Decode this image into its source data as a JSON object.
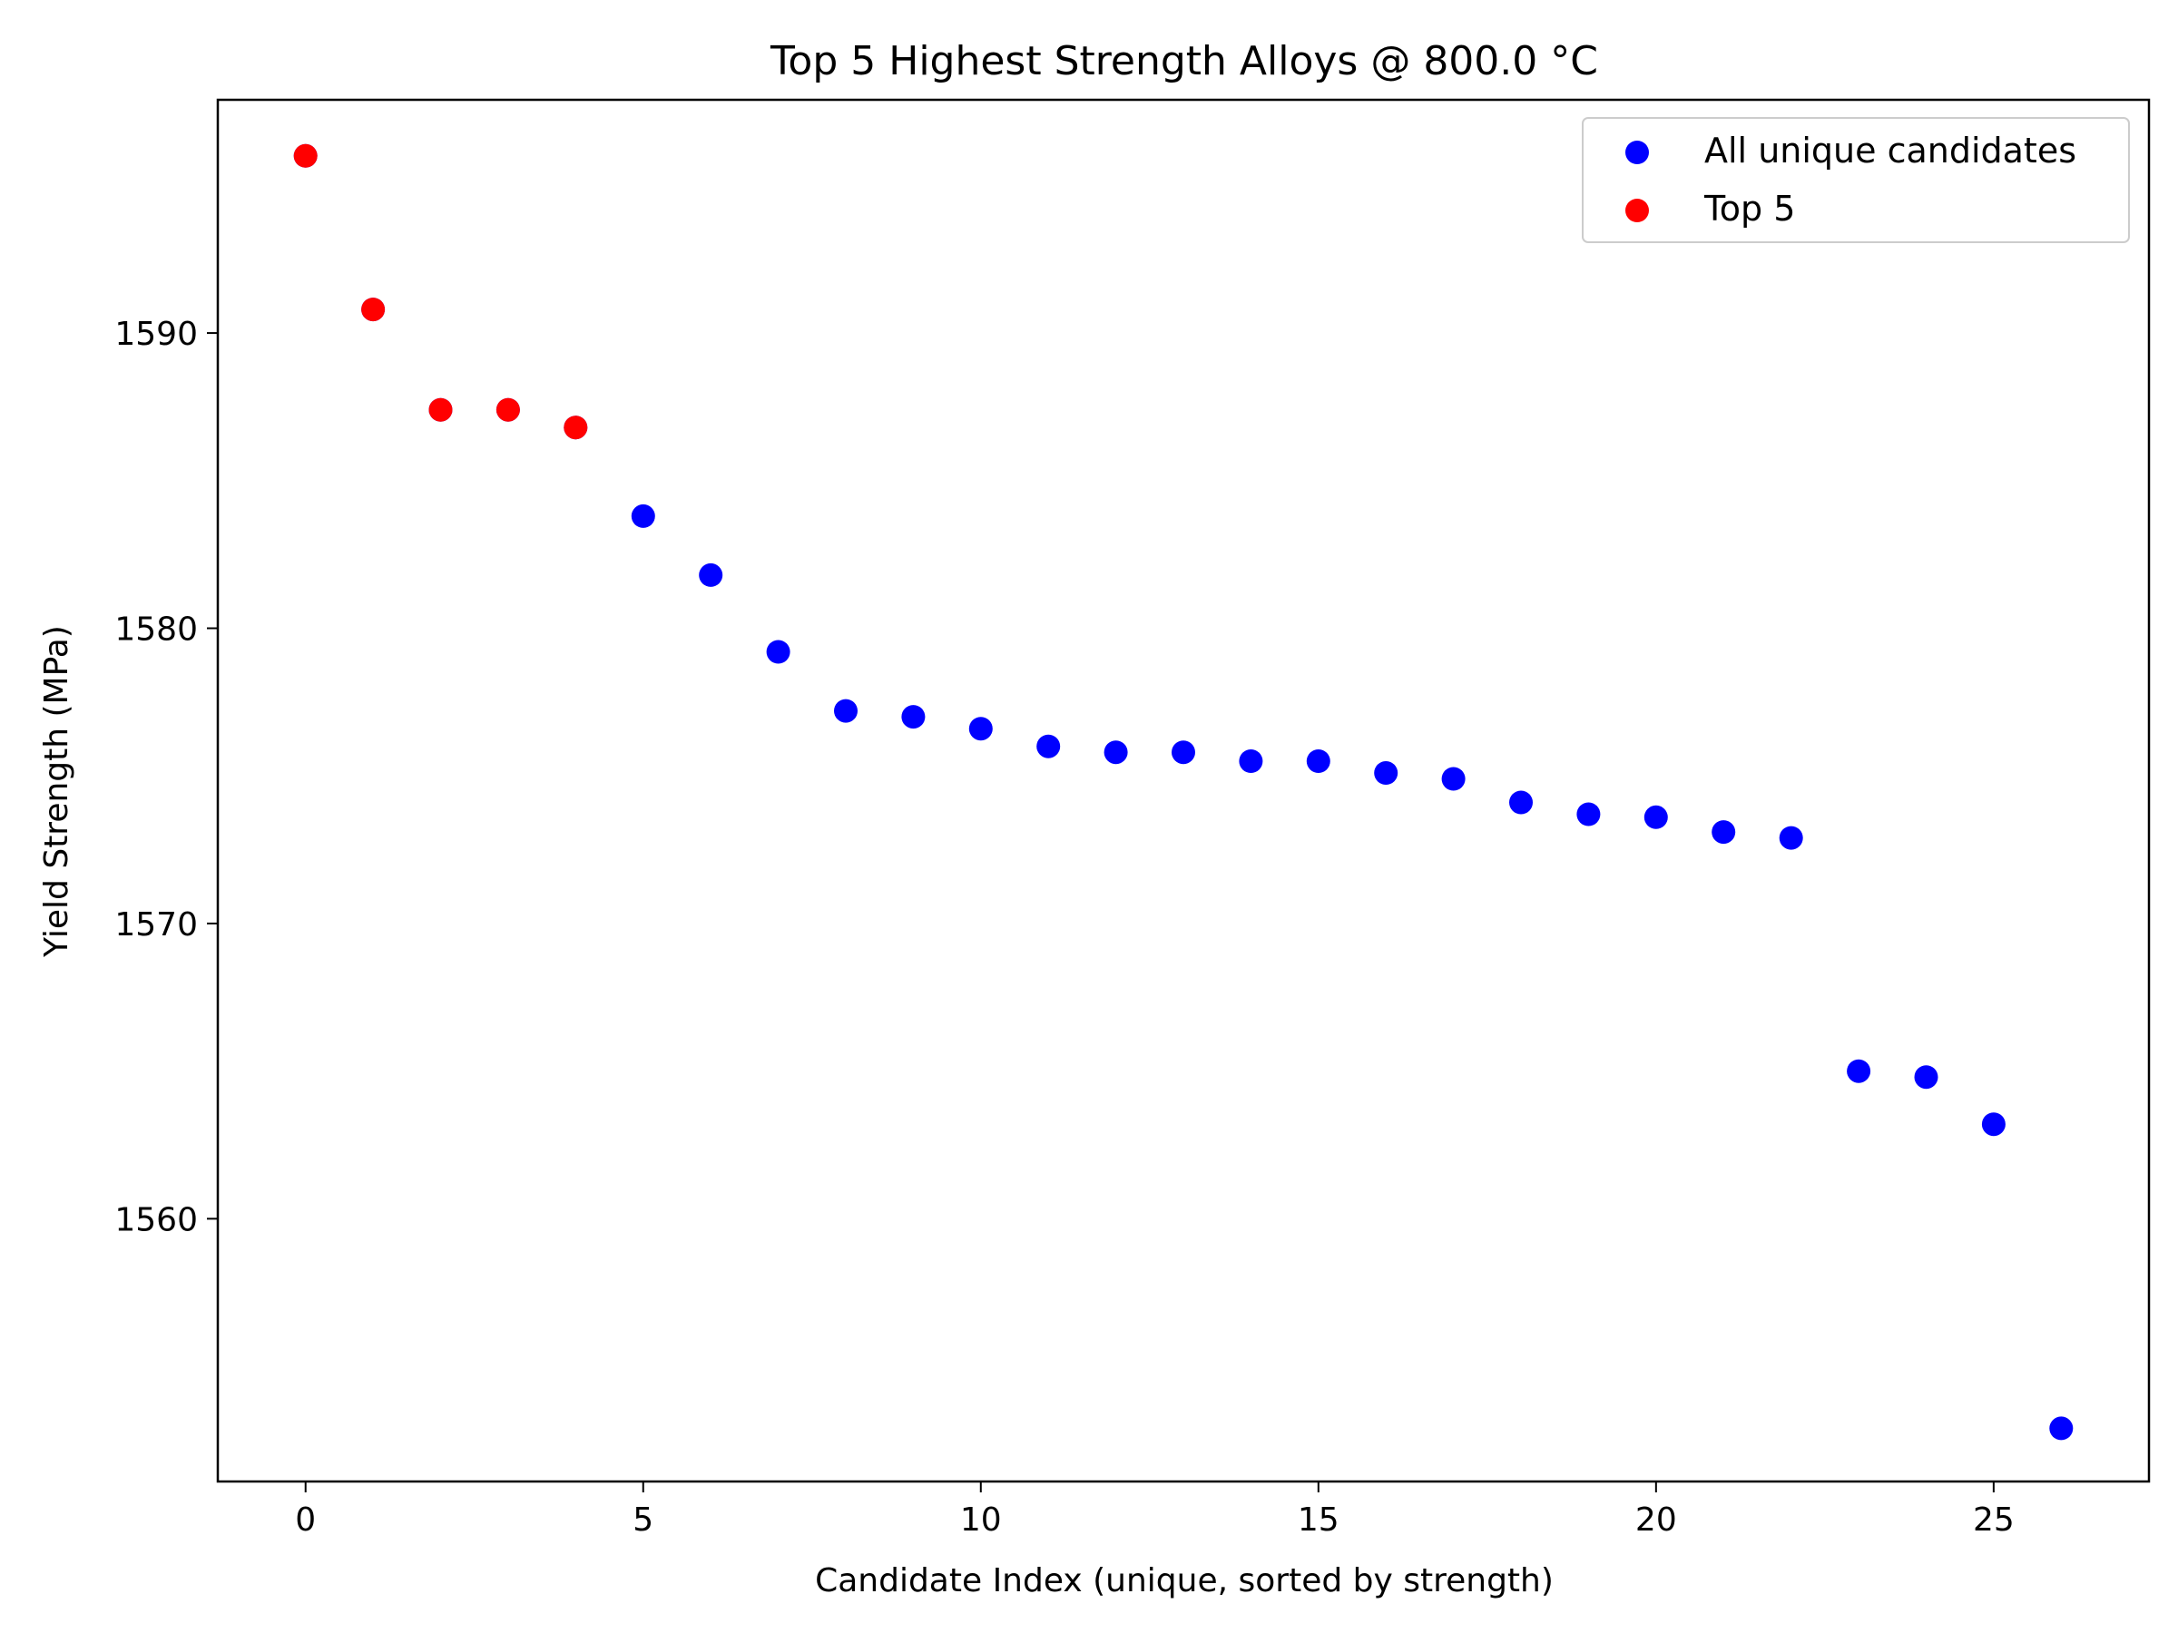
{
  "chart_data": {
    "type": "scatter",
    "title": "Top 5 Highest Strength Alloys @ 800.0 °C",
    "xlabel": "Candidate Index (unique, sorted by strength)",
    "ylabel": "Yield Strength (MPa)",
    "xlim": [
      -1.3,
      27.3
    ],
    "ylim": [
      1551.1,
      1597.9
    ],
    "xticks": [
      0,
      5,
      10,
      15,
      20,
      25
    ],
    "yticks": [
      1560,
      1570,
      1580,
      1590
    ],
    "grid": false,
    "legend_position": "top-right",
    "series": [
      {
        "name": "All unique candidates",
        "color": "#0000ff",
        "x": [
          0,
          1,
          2,
          3,
          4,
          5,
          6,
          7,
          8,
          9,
          10,
          11,
          12,
          13,
          14,
          15,
          16,
          17,
          18,
          19,
          20,
          21,
          22,
          23,
          24,
          25,
          26
        ],
        "y": [
          1596.0,
          1590.8,
          1587.4,
          1587.4,
          1586.8,
          1583.8,
          1581.8,
          1579.2,
          1577.2,
          1577.0,
          1576.6,
          1576.0,
          1575.8,
          1575.8,
          1575.5,
          1575.5,
          1575.1,
          1574.9,
          1574.1,
          1573.7,
          1573.6,
          1573.1,
          1572.9,
          1565.0,
          1564.8,
          1563.2,
          1552.9
        ]
      },
      {
        "name": "Top 5",
        "color": "#ff0000",
        "x": [
          0,
          1,
          2,
          3,
          4
        ],
        "y": [
          1596.0,
          1590.8,
          1587.4,
          1587.4,
          1586.8
        ]
      }
    ]
  }
}
